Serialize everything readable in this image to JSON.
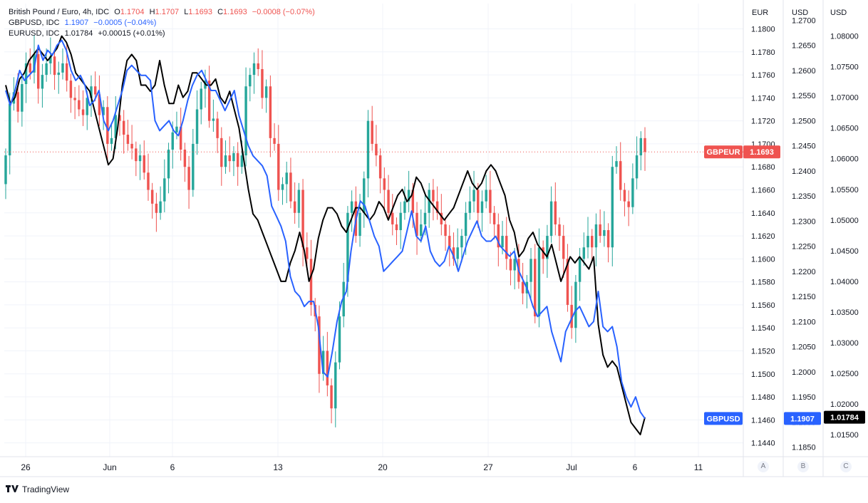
{
  "legend": {
    "main": {
      "name": "British Pound / Euro, 4h, IDC",
      "o_label": "O",
      "o_value": "1.1704",
      "h_label": "H",
      "h_value": "1.1707",
      "l_label": "L",
      "l_value": "1.1693",
      "c_label": "C",
      "c_value": "1.1693",
      "change": "−0.0008 (−0.07%)"
    },
    "gbpusd": {
      "name": "GBPUSD, IDC",
      "value": "1.1907",
      "change": "−0.0005 (−0.04%)"
    },
    "eurusd": {
      "name": "EURUSD, IDC",
      "value": "1.01784",
      "change": "+0.00015 (+0.01%)"
    }
  },
  "axis_headers": [
    "EUR",
    "USD",
    "USD"
  ],
  "axis_buttons": [
    "A",
    "B",
    "C"
  ],
  "branding": "TradingView",
  "colors": {
    "up": "#26a69a",
    "down": "#ef5350",
    "gbpusd_line": "#2962ff",
    "eurusd_line": "#000000",
    "grid": "#f0f3fa",
    "axis_text": "#131722",
    "border": "#e0e3eb"
  },
  "chart_data": {
    "type": "line",
    "title": "British Pound / Euro, 4h, IDC",
    "x": {
      "tick_labels": [
        "26",
        "Jun",
        "6",
        "13",
        "20",
        "27",
        "Jul",
        "6",
        "11"
      ],
      "range": [
        "2022-05-25",
        "2022-07-12"
      ]
    },
    "axes": {
      "A": {
        "unit": "EUR",
        "range": [
          1.1428,
          1.1822
        ],
        "ticks": [
          "1.1440",
          "1.1460",
          "1.1480",
          "1.1500",
          "1.1520",
          "1.1540",
          "1.1560",
          "1.1580",
          "1.1600",
          "1.1620",
          "1.1640",
          "1.1660",
          "1.1680",
          "1.1700",
          "1.1720",
          "1.1740",
          "1.1760",
          "1.1780",
          "1.1800"
        ]
      },
      "B": {
        "unit": "USD",
        "range": [
          1.1831,
          1.2733
        ],
        "ticks": [
          "1.1850",
          "1.1900",
          "1.1950",
          "1.2000",
          "1.2050",
          "1.2100",
          "1.2150",
          "1.2200",
          "1.2250",
          "1.2300",
          "1.2350",
          "1.2400",
          "1.2450",
          "1.2500",
          "1.2550",
          "1.2600",
          "1.2650",
          "1.2700"
        ]
      },
      "C": {
        "unit": "USD",
        "range": [
          1.0114,
          1.0853
        ],
        "ticks": [
          "1.01500",
          "1.02000",
          "1.02500",
          "1.03000",
          "1.03500",
          "1.04000",
          "1.04500",
          "1.05000",
          "1.05500",
          "1.06000",
          "1.06500",
          "1.07000",
          "1.07500",
          "1.08000"
        ]
      }
    },
    "series": [
      {
        "name": "GBPEUR",
        "type": "candlestick",
        "axis": "A",
        "last_value": "1.1693",
        "close": [
          1.169,
          1.1735,
          1.1745,
          1.1728,
          1.1752,
          1.177,
          1.1762,
          1.1778,
          1.1748,
          1.176,
          1.177,
          1.1776,
          1.176,
          1.1762,
          1.177,
          1.1755,
          1.174,
          1.1738,
          1.173,
          1.1725,
          1.174,
          1.175,
          1.1743,
          1.1725,
          1.1732,
          1.17,
          1.1705,
          1.1725,
          1.172,
          1.1708,
          1.17,
          1.1696,
          1.1685,
          1.169,
          1.1675,
          1.166,
          1.1648,
          1.164,
          1.165,
          1.167,
          1.1695,
          1.171,
          1.1715,
          1.1695,
          1.168,
          1.166,
          1.17,
          1.173,
          1.1748,
          1.1755,
          1.172,
          1.1722,
          1.1705,
          1.168,
          1.169,
          1.1685,
          1.1692,
          1.168,
          1.169,
          1.175,
          1.176,
          1.177,
          1.1765,
          1.174,
          1.175,
          1.1705,
          1.17,
          1.166,
          1.1665,
          1.1675,
          1.165,
          1.164,
          1.166,
          1.161,
          1.16,
          1.156,
          1.155,
          1.15,
          1.152,
          1.149,
          1.147,
          1.151,
          1.155,
          1.158,
          1.164,
          1.165,
          1.162,
          1.164,
          1.167,
          1.172,
          1.17,
          1.169,
          1.167,
          1.166,
          1.164,
          1.163,
          1.1625,
          1.164,
          1.165,
          1.166,
          1.164,
          1.162,
          1.163,
          1.164,
          1.166,
          1.165,
          1.164,
          1.163,
          1.162,
          1.161,
          1.16,
          1.161,
          1.162,
          1.164,
          1.165,
          1.166,
          1.164,
          1.165,
          1.166,
          1.164,
          1.163,
          1.161,
          1.162,
          1.16,
          1.159,
          1.16,
          1.158,
          1.157,
          1.158,
          1.16,
          1.155,
          1.161,
          1.16,
          1.162,
          1.165,
          1.163,
          1.162,
          1.16,
          1.156,
          1.154,
          1.158,
          1.16,
          1.161,
          1.162,
          1.161,
          1.163,
          1.162,
          1.1625,
          1.161,
          1.168,
          1.1685,
          1.166,
          1.165,
          1.1645,
          1.167,
          1.169,
          1.1705,
          1.1693
        ]
      },
      {
        "name": "GBPUSD",
        "type": "line",
        "axis": "B",
        "last_value": "1.1907",
        "values": [
          1.256,
          1.253,
          1.256,
          1.26,
          1.258,
          1.259,
          1.26,
          1.265,
          1.262,
          1.264,
          1.263,
          1.265,
          1.266,
          1.264,
          1.26,
          1.258,
          1.259,
          1.257,
          1.253,
          1.254,
          1.256,
          1.25,
          1.248,
          1.25,
          1.253,
          1.256,
          1.26,
          1.261,
          1.26,
          1.259,
          1.259,
          1.258,
          1.25,
          1.248,
          1.249,
          1.25,
          1.248,
          1.247,
          1.25,
          1.254,
          1.257,
          1.259,
          1.26,
          1.258,
          1.256,
          1.256,
          1.254,
          1.252,
          1.254,
          1.256,
          1.251,
          1.248,
          1.245,
          1.243,
          1.242,
          1.241,
          1.239,
          1.233,
          1.231,
          1.229,
          1.226,
          1.219,
          1.216,
          1.215,
          1.213,
          1.214,
          1.214,
          1.209,
          1.2,
          1.199,
          1.204,
          1.21,
          1.214,
          1.216,
          1.224,
          1.23,
          1.234,
          1.233,
          1.23,
          1.227,
          1.225,
          1.22,
          1.221,
          1.222,
          1.223,
          1.224,
          1.228,
          1.232,
          1.227,
          1.226,
          1.229,
          1.224,
          1.222,
          1.221,
          1.222,
          1.225,
          1.223,
          1.22,
          1.223,
          1.226,
          1.228,
          1.23,
          1.227,
          1.226,
          1.226,
          1.227,
          1.225,
          1.224,
          1.223,
          1.224,
          1.22,
          1.218,
          1.216,
          1.213,
          1.211,
          1.212,
          1.213,
          1.208,
          1.205,
          1.202,
          1.208,
          1.21,
          1.212,
          1.213,
          1.211,
          1.209,
          1.21,
          1.216,
          1.209,
          1.208,
          1.209,
          1.205,
          1.198,
          1.195,
          1.193,
          1.195,
          1.192,
          1.1907
        ]
      },
      {
        "name": "EURUSD",
        "type": "line",
        "axis": "C",
        "last_value": "1.01784",
        "values": [
          1.072,
          1.069,
          1.07,
          1.073,
          1.074,
          1.076,
          1.077,
          1.078,
          1.077,
          1.076,
          1.077,
          1.078,
          1.08,
          1.079,
          1.077,
          1.074,
          1.073,
          1.072,
          1.071,
          1.068,
          1.065,
          1.062,
          1.059,
          1.06,
          1.065,
          1.072,
          1.076,
          1.077,
          1.076,
          1.072,
          1.072,
          1.071,
          1.072,
          1.076,
          1.072,
          1.069,
          1.069,
          1.072,
          1.07,
          1.071,
          1.074,
          1.074,
          1.073,
          1.072,
          1.072,
          1.073,
          1.07,
          1.069,
          1.071,
          1.068,
          1.065,
          1.06,
          1.055,
          1.051,
          1.05,
          1.048,
          1.046,
          1.044,
          1.042,
          1.04,
          1.04,
          1.043,
          1.045,
          1.048,
          1.045,
          1.04,
          1.042,
          1.047,
          1.05,
          1.052,
          1.052,
          1.051,
          1.049,
          1.048,
          1.05,
          1.052,
          1.052,
          1.051,
          1.05,
          1.051,
          1.053,
          1.052,
          1.05,
          1.052,
          1.054,
          1.055,
          1.053,
          1.054,
          1.057,
          1.056,
          1.054,
          1.053,
          1.052,
          1.051,
          1.05,
          1.051,
          1.052,
          1.054,
          1.056,
          1.058,
          1.056,
          1.055,
          1.056,
          1.058,
          1.059,
          1.058,
          1.056,
          1.054,
          1.05,
          1.048,
          1.044,
          1.045,
          1.047,
          1.048,
          1.046,
          1.045,
          1.044,
          1.046,
          1.043,
          1.04,
          1.042,
          1.044,
          1.043,
          1.044,
          1.043,
          1.042,
          1.044,
          1.033,
          1.028,
          1.026,
          1.027,
          1.026,
          1.023,
          1.02,
          1.017,
          1.016,
          1.015,
          1.01784
        ]
      }
    ]
  }
}
